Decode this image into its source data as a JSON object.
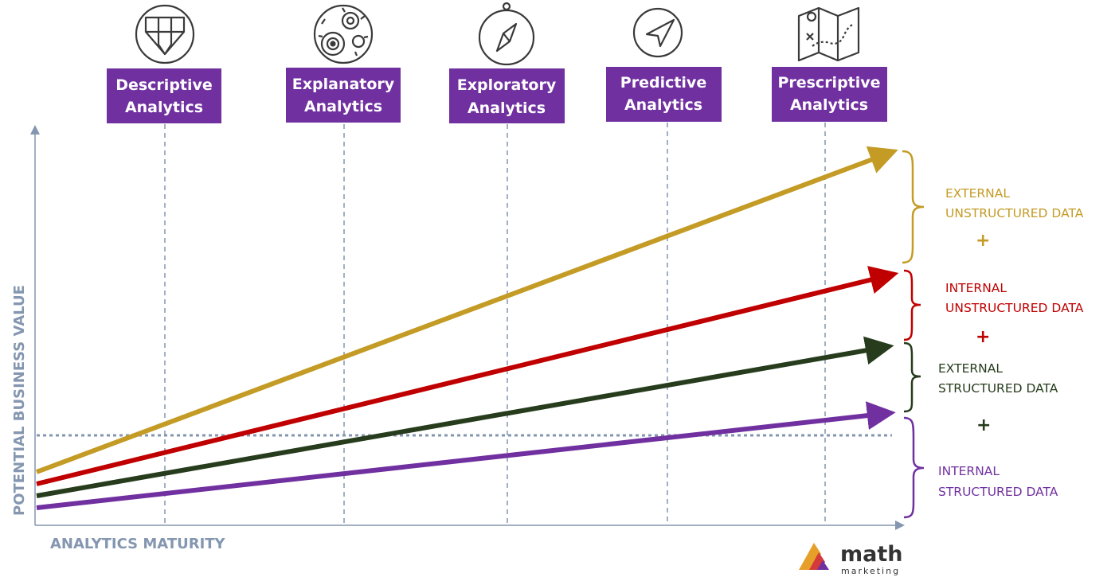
{
  "stages": [
    {
      "line1": "Descriptive",
      "line2": "Analytics",
      "icon": "pencil-tip-icon"
    },
    {
      "line1": "Explanatory",
      "line2": "Analytics",
      "icon": "gears-icon"
    },
    {
      "line1": "Exploratory",
      "line2": "Analytics",
      "icon": "compass-icon"
    },
    {
      "line1": "Predictive",
      "line2": "Analytics",
      "icon": "navigation-arrow-icon"
    },
    {
      "line1": "Prescriptive",
      "line2": "Analytics",
      "icon": "treasure-map-icon"
    }
  ],
  "axes": {
    "x_label": "ANALYTICS MATURITY",
    "y_label": "POTENTIAL BUSINESS VALUE"
  },
  "data_types": [
    {
      "line1": "EXTERNAL",
      "line2": "UNSTRUCTURED DATA",
      "color": "#c39b25"
    },
    {
      "line1": "INTERNAL",
      "line2": "UNSTRUCTURED DATA",
      "color": "#c00000"
    },
    {
      "line1": "EXTERNAL",
      "line2": "STRUCTURED DATA",
      "color": "#263c1c"
    },
    {
      "line1": "INTERNAL",
      "line2": "STRUCTURED DATA",
      "color": "#7030a0"
    }
  ],
  "plus_signs": [
    {
      "text": "+",
      "color": "#c39b25"
    },
    {
      "text": "+",
      "color": "#c00000"
    },
    {
      "text": "+",
      "color": "#263c1c"
    }
  ],
  "colors": {
    "stage_box": "#7030a0",
    "axis": "#8496b0",
    "guide": "#8496b0"
  },
  "logo": {
    "name": "math",
    "sub": "marketing"
  }
}
